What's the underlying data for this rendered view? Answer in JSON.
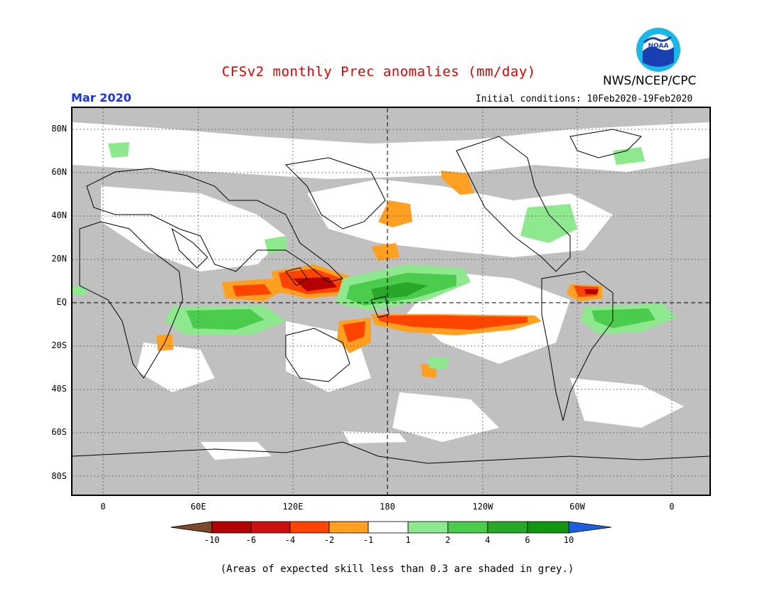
{
  "title": "CFSv2 monthly Prec anomalies (mm/day)",
  "organization": "NWS/NCEP/CPC",
  "logo_text": "NOAA",
  "valid_month": "Mar 2020",
  "initial_conditions": {
    "label": "Initial conditions:",
    "value": "10Feb2020-19Feb2020"
  },
  "map": {
    "projection": "cylindrical equidistant",
    "lon_ticks": [
      "0",
      "60E",
      "120E",
      "180",
      "120W",
      "60W",
      "0"
    ],
    "lat_ticks": [
      "80N",
      "60N",
      "40N",
      "20N",
      "EQ",
      "20S",
      "40S",
      "60S",
      "80S"
    ],
    "grid": "dotted",
    "reference_lines": [
      "EQ",
      "180"
    ]
  },
  "colorbar": {
    "labels": [
      "-10",
      "-6",
      "-4",
      "-2",
      "-1",
      "1",
      "2",
      "4",
      "6",
      "10"
    ],
    "colors": [
      "#7a4a2a",
      "#b40000",
      "#cc1010",
      "#ff4400",
      "#ffa020",
      "#ffffff",
      "#8ee88e",
      "#4ccc4c",
      "#28a828",
      "#129612",
      "#1e5fe0"
    ]
  },
  "colors": {
    "title": "#e00000",
    "month": "#1a33e6",
    "low_skill_grey": "#c0c0c0"
  },
  "footnote": "(Areas of expected skill less than 0.3 are shaded in grey.)"
}
